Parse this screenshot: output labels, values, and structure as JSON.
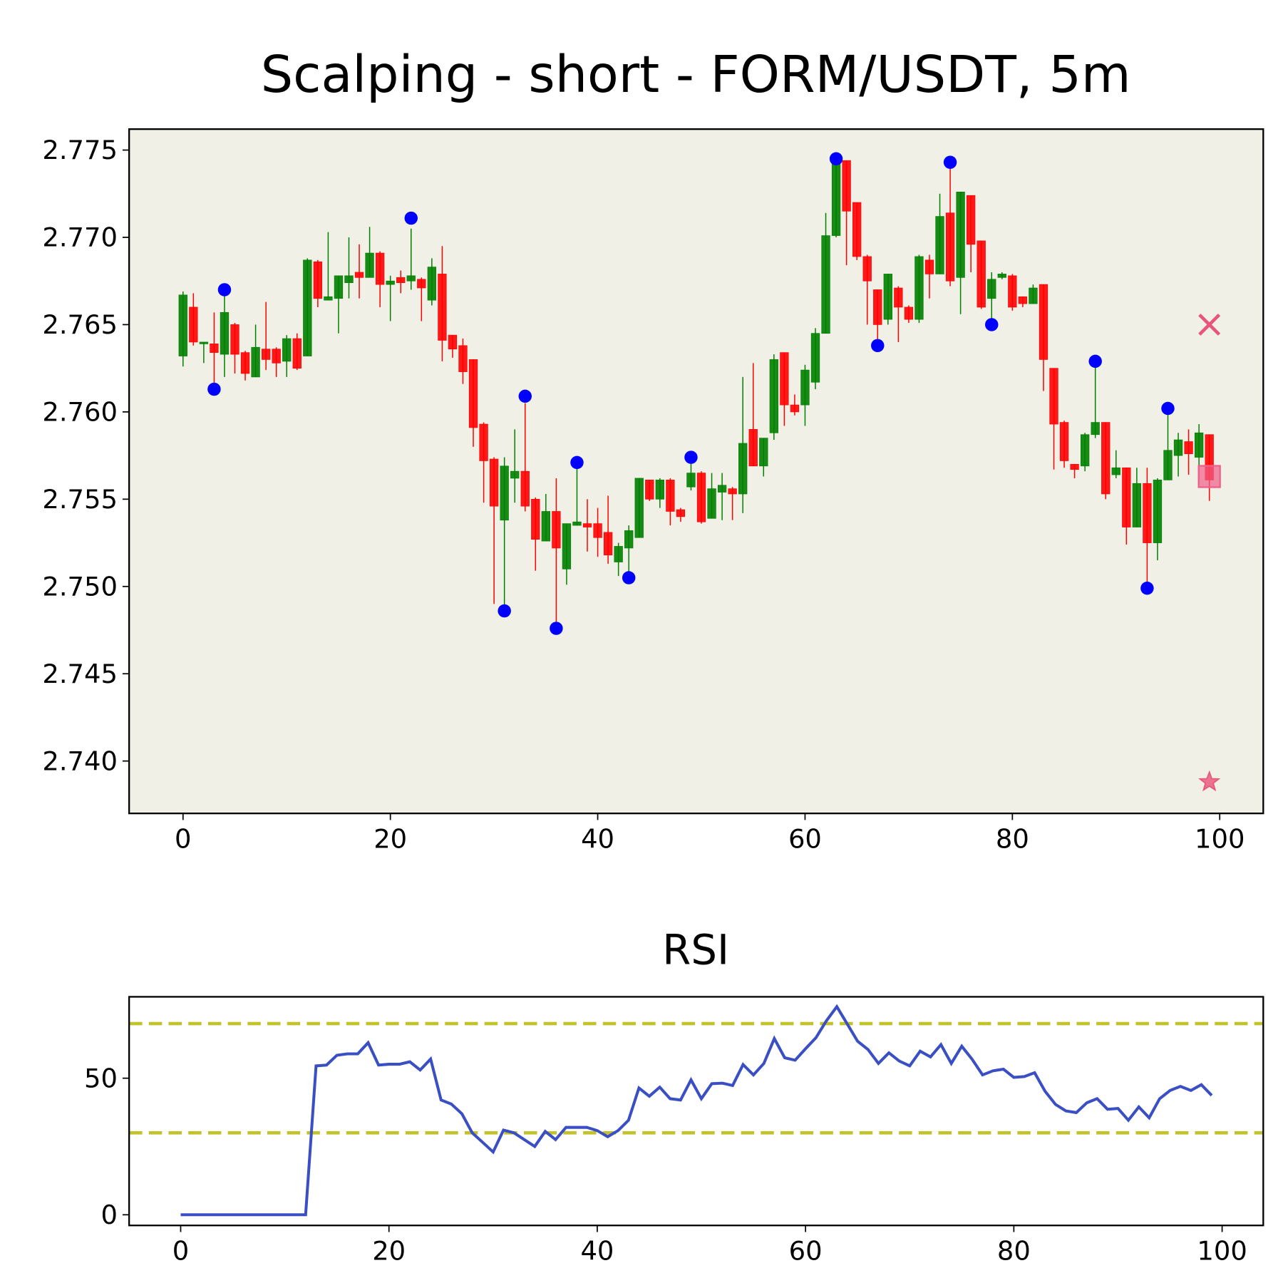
{
  "chart_data": [
    {
      "type": "candlestick",
      "title": "Scalping - short - FORM/USDT, 5m",
      "x": [
        0,
        1,
        2,
        3,
        4,
        5,
        6,
        7,
        8,
        9,
        10,
        11,
        12,
        13,
        14,
        15,
        16,
        17,
        18,
        19,
        20,
        21,
        22,
        23,
        24,
        25,
        26,
        27,
        28,
        29,
        30,
        31,
        32,
        33,
        34,
        35,
        36,
        37,
        38,
        39,
        40,
        41,
        42,
        43,
        44,
        45,
        46,
        47,
        48,
        49,
        50,
        51,
        52,
        53,
        54,
        55,
        56,
        57,
        58,
        59,
        60,
        61,
        62,
        63,
        64,
        65,
        66,
        67,
        68,
        69,
        70,
        71,
        72,
        73,
        74,
        75,
        76,
        77,
        78,
        79,
        80,
        81,
        82,
        83,
        84,
        85,
        86,
        87,
        88,
        89,
        90,
        91,
        92,
        93,
        94,
        95,
        96,
        97,
        98,
        99
      ],
      "open": [
        2.7632,
        2.766,
        2.7639,
        2.7639,
        2.7633,
        2.765,
        2.7634,
        2.762,
        2.7636,
        2.7636,
        2.7629,
        2.7642,
        2.7632,
        2.7686,
        2.7664,
        2.7665,
        2.7674,
        2.768,
        2.7677,
        2.7691,
        2.7673,
        2.7677,
        2.7675,
        2.7676,
        2.7664,
        2.7679,
        2.7644,
        2.7638,
        2.763,
        2.7593,
        2.7573,
        2.7538,
        2.7562,
        2.7566,
        2.755,
        2.7526,
        2.7543,
        2.751,
        2.7535,
        2.7536,
        2.7536,
        2.7531,
        2.7514,
        2.7522,
        2.7528,
        2.7561,
        2.755,
        2.7561,
        2.7544,
        2.7557,
        2.7565,
        2.7539,
        2.7554,
        2.7556,
        2.7553,
        2.759,
        2.7569,
        2.7588,
        2.7634,
        2.7604,
        2.7604,
        2.7617,
        2.7645,
        2.7701,
        2.7744,
        2.772,
        2.7689,
        2.767,
        2.7653,
        2.7671,
        2.766,
        2.7653,
        2.7687,
        2.7679,
        2.7714,
        2.7677,
        2.7724,
        2.7698,
        2.7665,
        2.7677,
        2.7678,
        2.7666,
        2.7662,
        2.7673,
        2.7625,
        2.7594,
        2.757,
        2.7569,
        2.7587,
        2.7594,
        2.7564,
        2.7568,
        2.7534,
        2.7559,
        2.7525,
        2.7561,
        2.7575,
        2.7583,
        2.7574,
        2.7587
      ],
      "high": [
        2.7669,
        2.7668,
        2.764,
        2.7657,
        2.7668,
        2.7651,
        2.7635,
        2.765,
        2.7663,
        2.7637,
        2.7644,
        2.7645,
        2.7688,
        2.7687,
        2.7703,
        2.7678,
        2.77,
        2.7696,
        2.7706,
        2.7692,
        2.7678,
        2.7681,
        2.7705,
        2.7677,
        2.7688,
        2.7695,
        2.7644,
        2.7642,
        2.763,
        2.7594,
        2.7574,
        2.7574,
        2.759,
        2.7605,
        2.7551,
        2.7553,
        2.7562,
        2.7536,
        2.757,
        2.755,
        2.7545,
        2.7552,
        2.7525,
        2.7535,
        2.7562,
        2.7561,
        2.7562,
        2.7562,
        2.7545,
        2.7574,
        2.7566,
        2.7565,
        2.7565,
        2.7557,
        2.762,
        2.7628,
        2.7585,
        2.7633,
        2.7634,
        2.761,
        2.7627,
        2.7648,
        2.7714,
        2.7744,
        2.7744,
        2.772,
        2.769,
        2.767,
        2.7679,
        2.7672,
        2.7661,
        2.769,
        2.769,
        2.7725,
        2.7741,
        2.7726,
        2.7724,
        2.7698,
        2.768,
        2.768,
        2.7679,
        2.7666,
        2.7673,
        2.7673,
        2.7625,
        2.7595,
        2.757,
        2.7588,
        2.7626,
        2.7594,
        2.7578,
        2.7568,
        2.7568,
        2.7568,
        2.7562,
        2.76,
        2.7588,
        2.759,
        2.7593,
        2.7587
      ],
      "low": [
        2.7626,
        2.7638,
        2.7628,
        2.7615,
        2.762,
        2.7622,
        2.7618,
        2.762,
        2.7624,
        2.762,
        2.762,
        2.7624,
        2.7632,
        2.766,
        2.7664,
        2.7645,
        2.7665,
        2.7665,
        2.7677,
        2.766,
        2.7652,
        2.7668,
        2.767,
        2.7652,
        2.7661,
        2.7629,
        2.7631,
        2.7616,
        2.758,
        2.7548,
        2.749,
        2.7487,
        2.7548,
        2.7543,
        2.7509,
        2.7526,
        2.7476,
        2.7501,
        2.7535,
        2.752,
        2.7517,
        2.7513,
        2.7506,
        2.7505,
        2.7528,
        2.7549,
        2.7545,
        2.7535,
        2.7537,
        2.7555,
        2.7536,
        2.7539,
        2.7538,
        2.7538,
        2.7542,
        2.7569,
        2.7563,
        2.7584,
        2.7592,
        2.7598,
        2.7592,
        2.7613,
        2.7645,
        2.77,
        2.7684,
        2.7687,
        2.765,
        2.7637,
        2.765,
        2.764,
        2.7651,
        2.7651,
        2.7665,
        2.7679,
        2.7672,
        2.7656,
        2.768,
        2.7659,
        2.7649,
        2.7676,
        2.7658,
        2.766,
        2.7662,
        2.7612,
        2.7567,
        2.7568,
        2.7562,
        2.7566,
        2.7585,
        2.755,
        2.7562,
        2.7524,
        2.7534,
        2.7499,
        2.7515,
        2.7561,
        2.7563,
        2.7564,
        2.756,
        2.7549
      ],
      "close": [
        2.7667,
        2.764,
        2.764,
        2.7634,
        2.7657,
        2.7633,
        2.7622,
        2.7637,
        2.763,
        2.7628,
        2.7642,
        2.7625,
        2.7687,
        2.7665,
        2.7666,
        2.7678,
        2.7678,
        2.7677,
        2.7691,
        2.7673,
        2.7675,
        2.7674,
        2.7678,
        2.7671,
        2.7683,
        2.7641,
        2.7636,
        2.7623,
        2.7591,
        2.7572,
        2.7546,
        2.7569,
        2.7566,
        2.7546,
        2.7527,
        2.7543,
        2.7522,
        2.7536,
        2.7537,
        2.7534,
        2.7528,
        2.7518,
        2.7523,
        2.7532,
        2.7562,
        2.755,
        2.7561,
        2.7543,
        2.754,
        2.7565,
        2.7537,
        2.7556,
        2.7558,
        2.7553,
        2.7582,
        2.7569,
        2.7585,
        2.763,
        2.7604,
        2.76,
        2.7624,
        2.7645,
        2.7701,
        2.7744,
        2.7715,
        2.7689,
        2.7675,
        2.765,
        2.7679,
        2.766,
        2.7653,
        2.7689,
        2.7679,
        2.7712,
        2.7675,
        2.7726,
        2.7696,
        2.766,
        2.7676,
        2.7679,
        2.766,
        2.7662,
        2.7671,
        2.763,
        2.7593,
        2.7572,
        2.7567,
        2.7587,
        2.7594,
        2.7553,
        2.7568,
        2.7534,
        2.7559,
        2.7525,
        2.7561,
        2.7578,
        2.7584,
        2.7576,
        2.7588,
        2.7561
      ],
      "up_color": "#008000",
      "down_color": "#ff0000",
      "background": "#f0f0e6",
      "markers": [
        {
          "marker": "circle",
          "color": "#0000ff",
          "x": [
            3,
            4,
            22,
            31,
            33,
            36,
            38,
            43,
            49,
            63,
            67,
            74,
            78,
            88,
            93,
            95
          ],
          "values": [
            2.7613,
            2.767,
            2.7711,
            2.7486,
            2.7609,
            2.7476,
            2.7571,
            2.7505,
            2.7574,
            2.7745,
            2.7638,
            2.7743,
            2.765,
            2.7629,
            2.7499,
            2.7602
          ]
        },
        {
          "marker": "x",
          "color": "#e8557a",
          "x": [
            99
          ],
          "values": [
            2.765
          ]
        },
        {
          "marker": "square",
          "color": "#f0608a",
          "x": [
            99
          ],
          "values": [
            2.7563
          ]
        },
        {
          "marker": "star",
          "color": "#e8557a",
          "x": [
            99
          ],
          "values": [
            2.7388
          ]
        }
      ],
      "xlim": [
        -5.2,
        104.2
      ],
      "ylim": [
        2.737,
        2.7762
      ],
      "xticks": [
        0,
        20,
        40,
        60,
        80,
        100
      ],
      "yticks": [
        {
          "value": 2.74,
          "label": "2.740"
        },
        2.745,
        {
          "value": 2.75,
          "label": "2.750"
        },
        2.755,
        {
          "value": 2.76,
          "label": "2.760"
        },
        2.765,
        {
          "value": 2.77,
          "label": "2.770"
        },
        2.775
      ]
    },
    {
      "type": "line",
      "title": "RSI",
      "x": [
        0,
        1,
        2,
        3,
        4,
        5,
        6,
        7,
        8,
        9,
        10,
        11,
        12,
        13,
        14,
        15,
        16,
        17,
        18,
        19,
        20,
        21,
        22,
        23,
        24,
        25,
        26,
        27,
        28,
        29,
        30,
        31,
        32,
        33,
        34,
        35,
        36,
        37,
        38,
        39,
        40,
        41,
        42,
        43,
        44,
        45,
        46,
        47,
        48,
        49,
        50,
        51,
        52,
        53,
        54,
        55,
        56,
        57,
        58,
        59,
        60,
        61,
        62,
        63,
        64,
        65,
        66,
        67,
        68,
        69,
        70,
        71,
        72,
        73,
        74,
        75,
        76,
        77,
        78,
        79,
        80,
        81,
        82,
        83,
        84,
        85,
        86,
        87,
        88,
        89,
        90,
        91,
        92,
        93,
        94,
        95,
        96,
        97,
        98,
        99
      ],
      "values": [
        0,
        0,
        0,
        0,
        0,
        0,
        0,
        0,
        0,
        0,
        0,
        0,
        0,
        54.5,
        54.8,
        58.4,
        58.9,
        58.9,
        63,
        54.8,
        55.1,
        55.1,
        56,
        53,
        57,
        42,
        40.5,
        37,
        30,
        26.5,
        23,
        31,
        30,
        27.5,
        25,
        30.5,
        27.5,
        32,
        32,
        32,
        30.8,
        28.6,
        30.8,
        34.6,
        46.4,
        43.4,
        46.7,
        42.5,
        42,
        49.4,
        42.5,
        48,
        48.2,
        47.3,
        55,
        51.2,
        55.4,
        64.5,
        57.5,
        56.6,
        60.8,
        64.8,
        71,
        76.2,
        69.9,
        63.5,
        60.5,
        55.4,
        59.3,
        56.3,
        54.5,
        59.9,
        57.8,
        62.3,
        55.4,
        61.7,
        56.9,
        51.2,
        52.7,
        53.3,
        50.3,
        50.6,
        52,
        45.2,
        40.4,
        38,
        37.4,
        41,
        42.5,
        38.6,
        38.9,
        34.6,
        39.5,
        35.5,
        42.5,
        45.5,
        47,
        45.5,
        47.6,
        43.7
      ],
      "color": "#3a4fc4",
      "hlines": [
        70,
        30
      ],
      "hline_color": "#c2c22a",
      "xlim": [
        -4.95,
        103.95
      ],
      "ylim": [
        -3.9,
        79.8
      ],
      "xticks": [
        0,
        20,
        40,
        60,
        80,
        100
      ],
      "yticks": [
        0,
        50
      ]
    }
  ]
}
